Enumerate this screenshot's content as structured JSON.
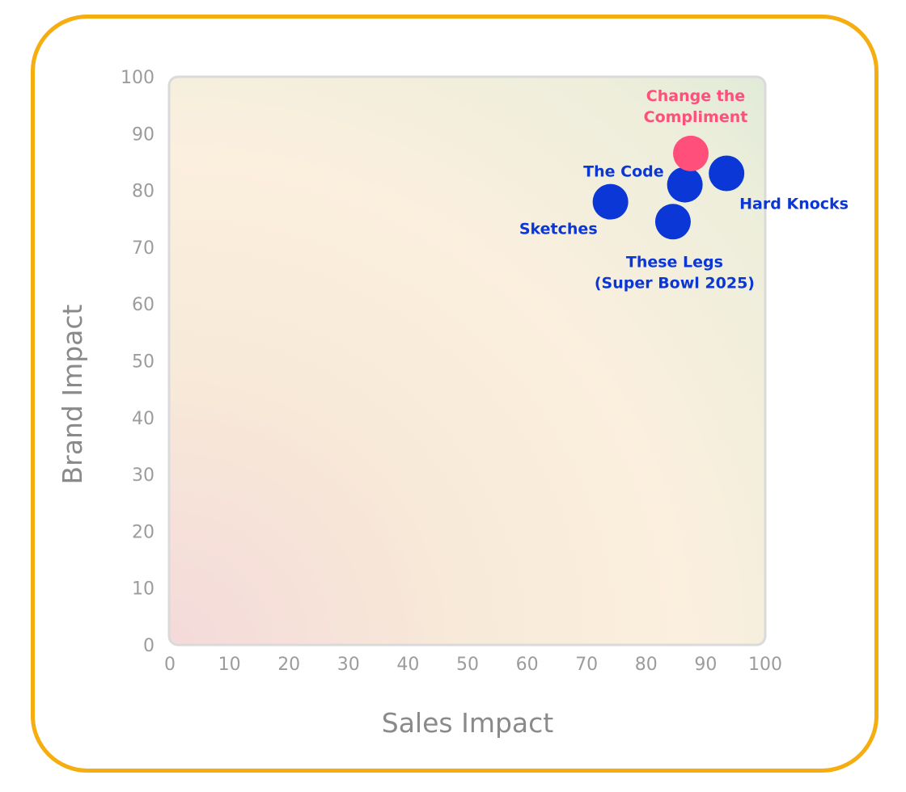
{
  "chart_data": {
    "type": "scatter",
    "xlabel": "Sales Impact",
    "ylabel": "Brand Impact",
    "xlim": [
      0,
      100
    ],
    "ylim": [
      0,
      100
    ],
    "xticks": [
      "0",
      "10",
      "20",
      "30",
      "40",
      "50",
      "60",
      "70",
      "80",
      "90",
      "100"
    ],
    "yticks": [
      "0",
      "10",
      "20",
      "30",
      "40",
      "50",
      "60",
      "70",
      "80",
      "90",
      "100"
    ],
    "grid": false,
    "points": [
      {
        "label": "Sketches",
        "x": 74,
        "y": 78,
        "color": "#0a37d6"
      },
      {
        "label": "The Code",
        "x": 86.5,
        "y": 81,
        "color": "#0a37d6"
      },
      {
        "label": "These Legs (Super Bowl 2025)",
        "label_lines": [
          "These Legs",
          "(Super Bowl 2025)"
        ],
        "x": 84.5,
        "y": 74.5,
        "color": "#0a37d6"
      },
      {
        "label": "Hard Knocks",
        "x": 93.5,
        "y": 83,
        "color": "#0a37d6"
      },
      {
        "label": "Change the Compliment",
        "label_lines": [
          "Change the",
          "Compliment"
        ],
        "x": 87.5,
        "y": 86.5,
        "color": "#ff4f7a"
      }
    ]
  },
  "colors": {
    "frame_border": "#f5ad0f",
    "plot_border": "#dadada",
    "point_primary": "#0a37d6",
    "point_highlight": "#ff4f7a"
  }
}
